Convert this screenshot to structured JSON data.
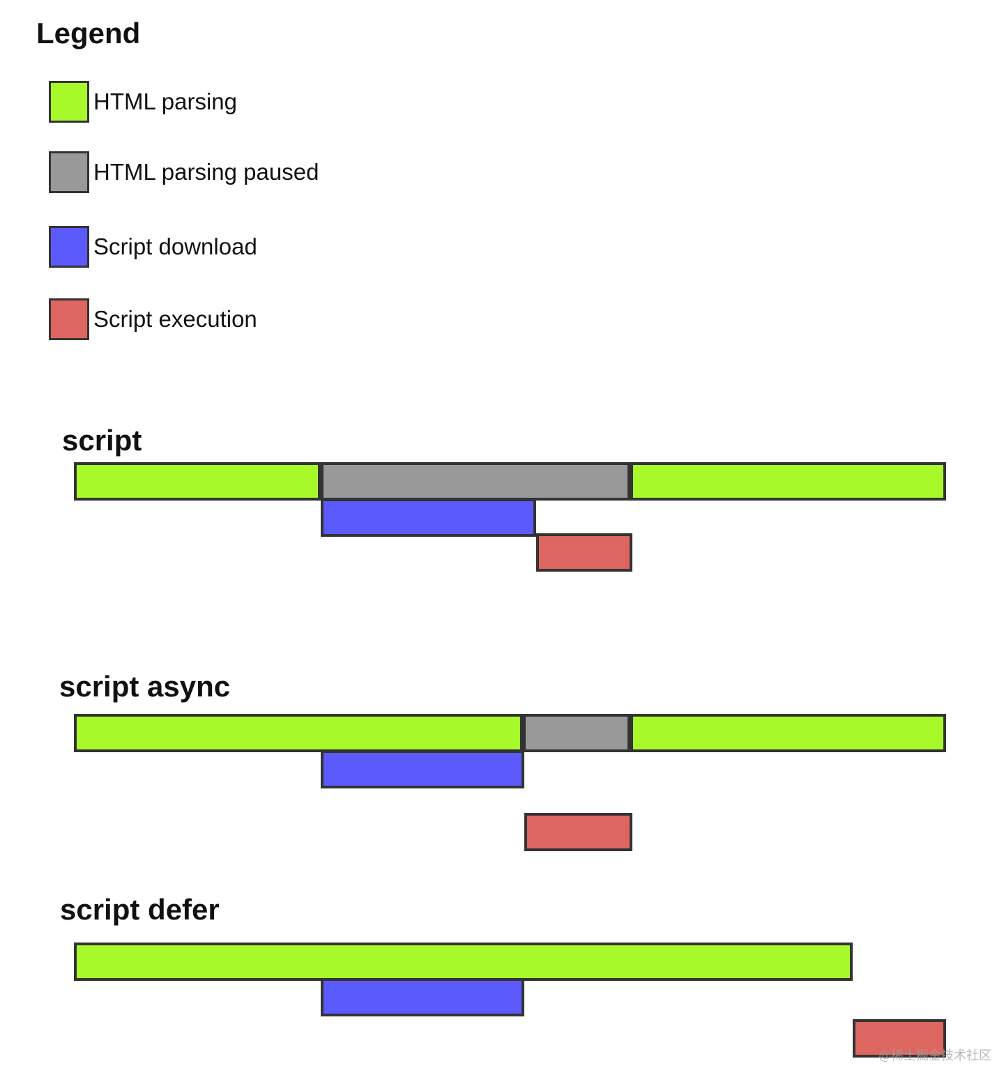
{
  "legend": {
    "title": "Legend",
    "items": [
      {
        "key": "parsing",
        "label": "HTML parsing",
        "color": "#a8f92a",
        "icon": "green-swatch"
      },
      {
        "key": "paused",
        "label": "HTML parsing paused",
        "color": "#999999",
        "icon": "gray-swatch"
      },
      {
        "key": "download",
        "label": "Script download",
        "color": "#5b5bfd",
        "icon": "blue-swatch"
      },
      {
        "key": "execution",
        "label": "Script execution",
        "color": "#dd6660",
        "icon": "red-swatch"
      }
    ]
  },
  "sections": [
    {
      "title": "script",
      "bars": [
        {
          "kind": "parsing",
          "row": 0,
          "start": 0.0,
          "end": 28.3
        },
        {
          "kind": "paused",
          "row": 0,
          "start": 28.3,
          "end": 63.8
        },
        {
          "kind": "parsing",
          "row": 0,
          "start": 63.8,
          "end": 100.0
        },
        {
          "kind": "download",
          "row": 1,
          "start": 28.3,
          "end": 53.0
        },
        {
          "kind": "execution",
          "row": 2,
          "start": 53.0,
          "end": 64.0
        }
      ]
    },
    {
      "title": "script async",
      "bars": [
        {
          "kind": "parsing",
          "row": 0,
          "start": 0.0,
          "end": 51.5
        },
        {
          "kind": "paused",
          "row": 0,
          "start": 51.5,
          "end": 63.8
        },
        {
          "kind": "parsing",
          "row": 0,
          "start": 63.8,
          "end": 100.0
        },
        {
          "kind": "download",
          "row": 1,
          "start": 28.3,
          "end": 51.6
        },
        {
          "kind": "execution",
          "row": 2,
          "start": 51.6,
          "end": 64.0
        }
      ]
    },
    {
      "title": "script defer",
      "bars": [
        {
          "kind": "parsing",
          "row": 0,
          "start": 0.0,
          "end": 89.3
        },
        {
          "kind": "download",
          "row": 1,
          "start": 28.3,
          "end": 51.6
        },
        {
          "kind": "execution",
          "row": 2,
          "start": 89.3,
          "end": 100.0
        }
      ]
    }
  ],
  "watermark": "@稀土掘金技术社区"
}
